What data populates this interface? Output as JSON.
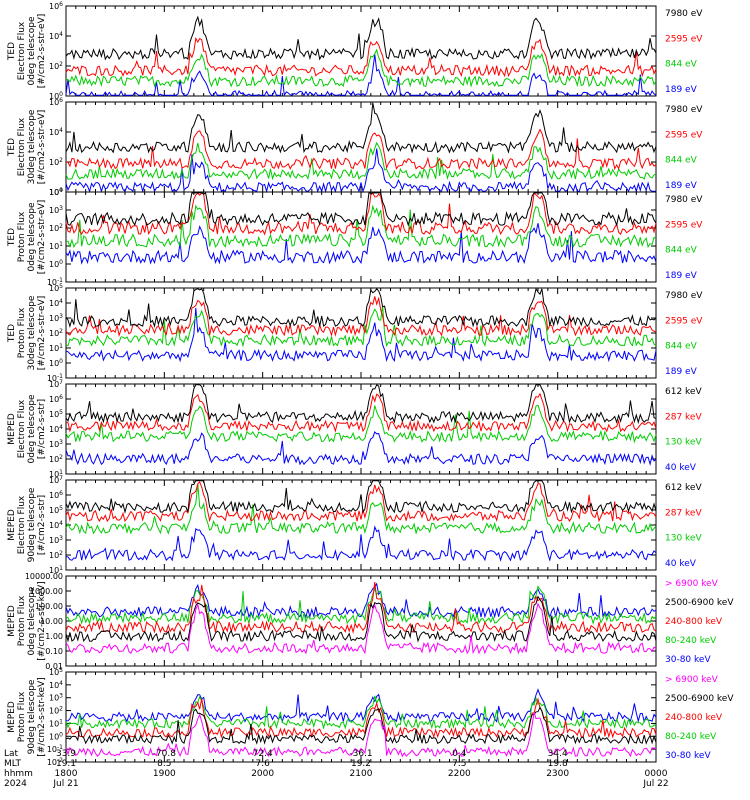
{
  "figure": {
    "xaxis_rows": {
      "labels": [
        "Lat",
        "MLT",
        "hhmm",
        "2024"
      ],
      "columns": [
        [
          "33.9",
          "19.1",
          "1800",
          "Jul 21"
        ],
        [
          "-70.8",
          "8.5",
          "1900",
          ""
        ],
        [
          "72.4",
          "7.6",
          "2000",
          ""
        ],
        [
          "-36.1",
          "19.2",
          "2100",
          ""
        ],
        [
          "0.4",
          "7.5",
          "2200",
          ""
        ],
        [
          "34.4",
          "19.8",
          "2300",
          ""
        ],
        [
          "",
          "",
          "0000",
          "Jul 22"
        ]
      ]
    }
  },
  "chart_data": [
    {
      "type": "line",
      "ylabel": [
        "TED",
        "Electron Flux",
        "0deg telescope",
        "[#/cm2-s-str-eV]"
      ],
      "yscale": "log",
      "ylim_exp": [
        0,
        6
      ],
      "ytick_labels": [
        "10^0",
        "10^2",
        "10^4",
        "10^6"
      ],
      "x": [
        "1800",
        "1900",
        "2000",
        "2100",
        "2200",
        "2300",
        "0000"
      ],
      "series": [
        {
          "name": "7980 eV",
          "color": "#000000"
        },
        {
          "name": "2595 eV",
          "color": "#ff0000"
        },
        {
          "name": "844 eV",
          "color": "#00cc00"
        },
        {
          "name": "189 eV",
          "color": "#0000ff"
        }
      ],
      "flux_levels_exp": [
        2.8,
        1.7,
        1.0,
        0.0
      ]
    },
    {
      "type": "line",
      "ylabel": [
        "TED",
        "Electron Flux",
        "30deg telescope",
        "[#/cm2-s-str-eV]"
      ],
      "yscale": "log",
      "ylim_exp": [
        0,
        6
      ],
      "ytick_labels": [
        "10^0",
        "10^2",
        "10^4",
        "10^6"
      ],
      "x": [
        "1800",
        "1900",
        "2000",
        "2100",
        "2200",
        "2300",
        "0000"
      ],
      "series": [
        {
          "name": "7980 eV",
          "color": "#000000"
        },
        {
          "name": "2595 eV",
          "color": "#ff0000"
        },
        {
          "name": "844 eV",
          "color": "#00cc00"
        },
        {
          "name": "189 eV",
          "color": "#0000ff"
        }
      ],
      "flux_levels_exp": [
        3.0,
        1.9,
        1.2,
        0.3
      ]
    },
    {
      "type": "line",
      "ylabel": [
        "TED",
        "Proton Flux",
        "0deg telescope",
        "[#/cm2-s-str-eV]"
      ],
      "yscale": "log",
      "ylim_exp": [
        -1,
        4
      ],
      "ytick_labels": [
        "10^-1",
        "10^0",
        "10^1",
        "10^2",
        "10^3",
        "10^4"
      ],
      "x": [
        "1800",
        "1900",
        "2000",
        "2100",
        "2200",
        "2300",
        "0000"
      ],
      "series": [
        {
          "name": "7980 eV",
          "color": "#000000"
        },
        {
          "name": "2595 eV",
          "color": "#ff0000"
        },
        {
          "name": "844 eV",
          "color": "#00cc00"
        },
        {
          "name": "189 eV",
          "color": "#0000ff"
        }
      ],
      "flux_levels_exp": [
        2.5,
        2.0,
        1.3,
        0.4
      ]
    },
    {
      "type": "line",
      "ylabel": [
        "TED",
        "Proton Flux",
        "30deg telescope",
        "[#/cm2-s-str-eV]"
      ],
      "yscale": "log",
      "ylim_exp": [
        -1,
        5
      ],
      "ytick_labels": [
        "10^-1",
        "10^0",
        "10^1",
        "10^2",
        "10^3",
        "10^4",
        "10^5"
      ],
      "x": [
        "1800",
        "1900",
        "2000",
        "2100",
        "2200",
        "2300",
        "0000"
      ],
      "series": [
        {
          "name": "7980 eV",
          "color": "#000000"
        },
        {
          "name": "2595 eV",
          "color": "#ff0000"
        },
        {
          "name": "844 eV",
          "color": "#00cc00"
        },
        {
          "name": "189 eV",
          "color": "#0000ff"
        }
      ],
      "flux_levels_exp": [
        2.8,
        2.2,
        1.5,
        0.5
      ]
    },
    {
      "type": "line",
      "ylabel": [
        "MEPED",
        "Electron Flux",
        "0deg telescope",
        "[#/cm2-s-str]"
      ],
      "yscale": "log",
      "ylim_exp": [
        1,
        7
      ],
      "ytick_labels": [
        "10^1",
        "10^2",
        "10^3",
        "10^4",
        "10^5",
        "10^6",
        "10^7"
      ],
      "x": [
        "1800",
        "1900",
        "2000",
        "2100",
        "2200",
        "2300",
        "0000"
      ],
      "series": [
        {
          "name": "612 keV",
          "color": "#000000"
        },
        {
          "name": "287 keV",
          "color": "#ff0000"
        },
        {
          "name": "130 keV",
          "color": "#00cc00"
        },
        {
          "name": "40 keV",
          "color": "#0000ff"
        }
      ],
      "flux_levels_exp": [
        4.8,
        4.2,
        3.5,
        2.0
      ]
    },
    {
      "type": "line",
      "ylabel": [
        "MEPED",
        "Electron Flux",
        "90deg telescope",
        "[#/cm2-s-str]"
      ],
      "yscale": "log",
      "ylim_exp": [
        1,
        7
      ],
      "ytick_labels": [
        "10^1",
        "10^2",
        "10^3",
        "10^4",
        "10^5",
        "10^6",
        "10^7"
      ],
      "x": [
        "1800",
        "1900",
        "2000",
        "2100",
        "2200",
        "2300",
        "0000"
      ],
      "series": [
        {
          "name": "612 keV",
          "color": "#000000"
        },
        {
          "name": "287 keV",
          "color": "#ff0000"
        },
        {
          "name": "130 keV",
          "color": "#00cc00"
        },
        {
          "name": "40 keV",
          "color": "#0000ff"
        }
      ],
      "flux_levels_exp": [
        5.2,
        4.6,
        3.8,
        2.0
      ]
    },
    {
      "type": "line",
      "ylabel": [
        "MEPED",
        "Proton Flux",
        "0deg telescope",
        "[#/cm2-s-str-keV]"
      ],
      "yscale": "log",
      "ylim_exp": [
        -2,
        4
      ],
      "ytick_labels": [
        "0.01",
        "0.10",
        "1.00",
        "10.00",
        "100.00",
        "1000.00",
        "10000.00"
      ],
      "x": [
        "1800",
        "1900",
        "2000",
        "2100",
        "2200",
        "2300",
        "0000"
      ],
      "series": [
        {
          "name": "> 6900 keV",
          "color": "#ff00ff"
        },
        {
          "name": "2500-6900 keV",
          "color": "#000000"
        },
        {
          "name": "240-800 keV",
          "color": "#ff0000"
        },
        {
          "name": "80-240 keV",
          "color": "#00cc00"
        },
        {
          "name": "30-80 keV",
          "color": "#0000ff"
        }
      ],
      "flux_levels_exp": [
        -0.8,
        0.0,
        0.6,
        1.2,
        1.6
      ]
    },
    {
      "type": "line",
      "ylabel": [
        "MEPED",
        "Proton Flux",
        "90deg telescope",
        "[#/cm2-s-str-keV]"
      ],
      "yscale": "log",
      "ylim_exp": [
        -2,
        5
      ],
      "ytick_labels": [
        "10^-2",
        "10^-1",
        "10^0",
        "10^1",
        "10^2",
        "10^3",
        "10^4",
        "10^5"
      ],
      "x": [
        "1800",
        "1900",
        "2000",
        "2100",
        "2200",
        "2300",
        "0000"
      ],
      "series": [
        {
          "name": "> 6900 keV",
          "color": "#ff00ff"
        },
        {
          "name": "2500-6900 keV",
          "color": "#000000"
        },
        {
          "name": "240-800 keV",
          "color": "#ff0000"
        },
        {
          "name": "80-240 keV",
          "color": "#00cc00"
        },
        {
          "name": "30-80 keV",
          "color": "#0000ff"
        }
      ],
      "flux_levels_exp": [
        -1.2,
        -0.2,
        0.3,
        1.0,
        1.5
      ]
    }
  ]
}
